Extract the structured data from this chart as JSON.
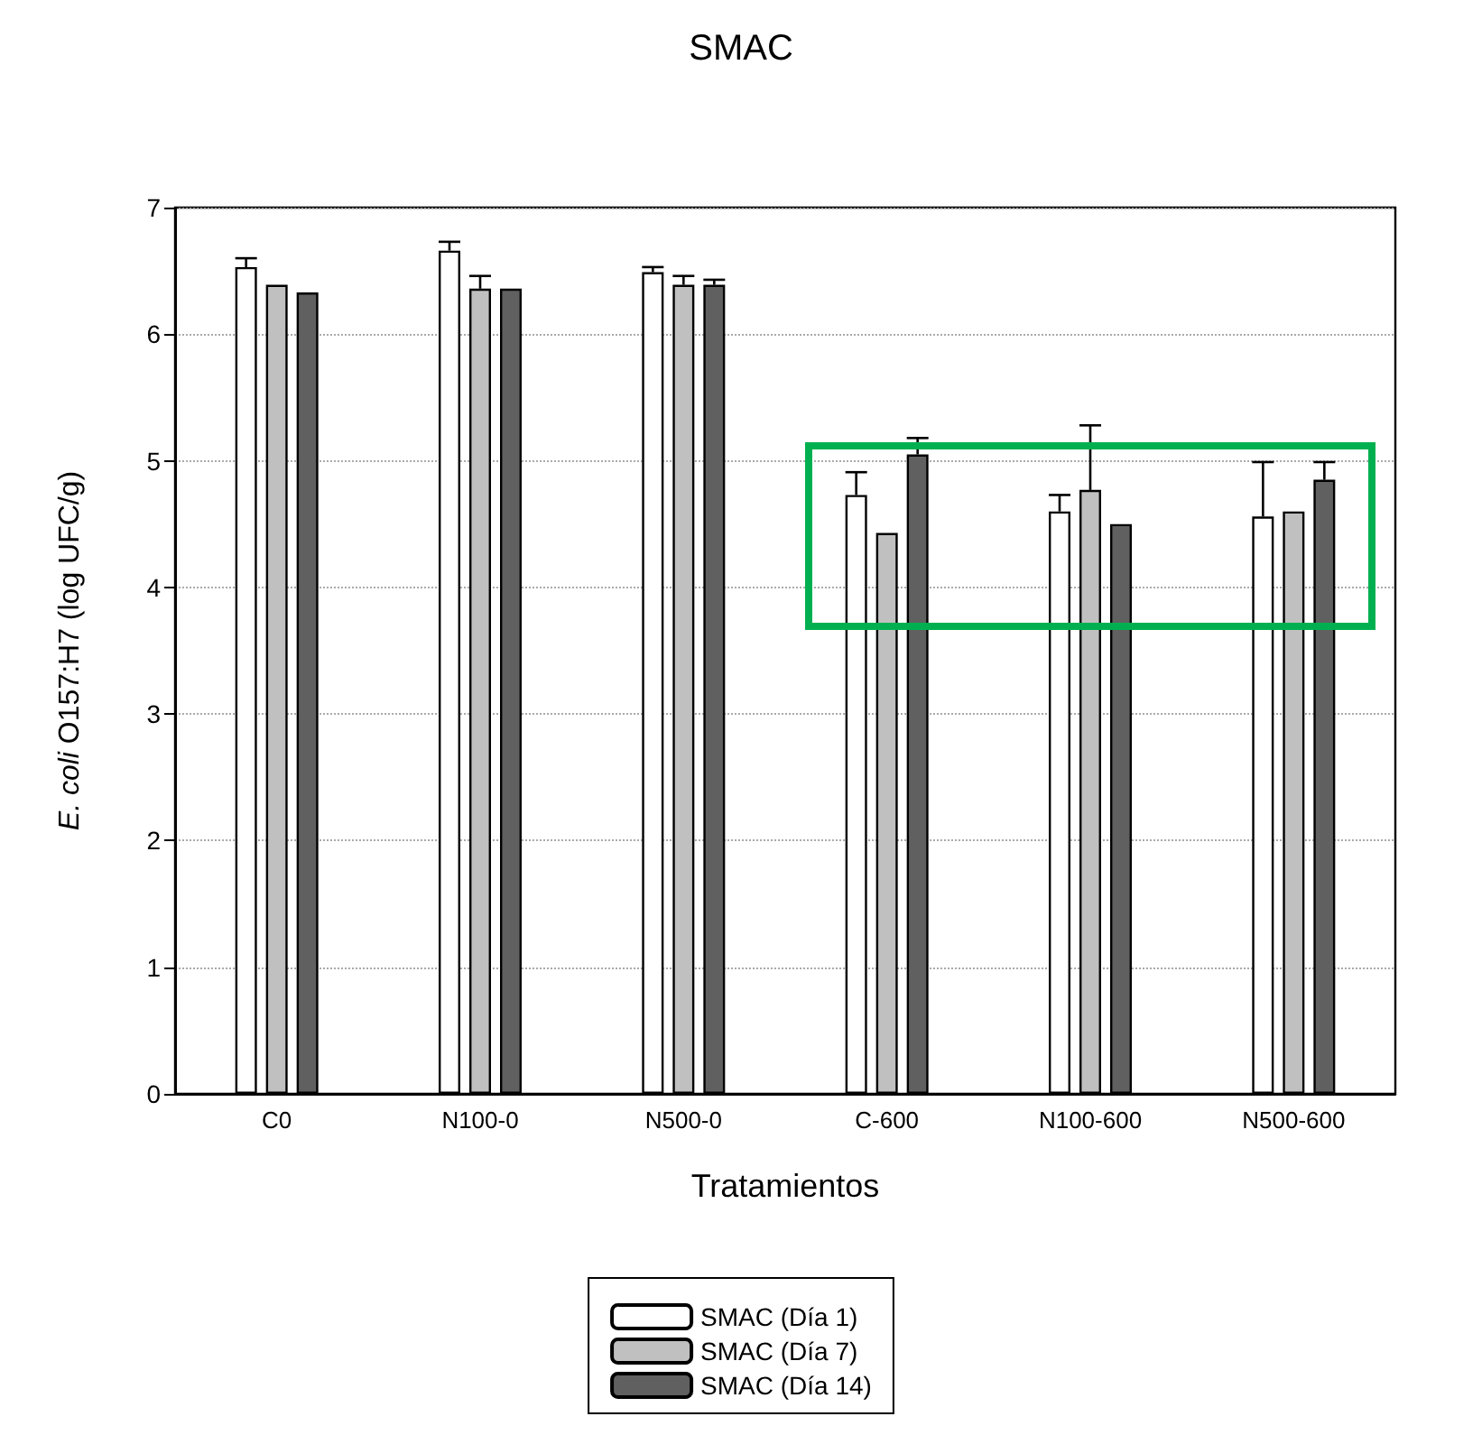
{
  "chart_data": {
    "type": "bar",
    "title": "SMAC",
    "xlabel": "Tratamientos",
    "ylabel": "E. coli O157:H7 (log UFC/g)",
    "categories": [
      "C0",
      "N100-0",
      "N500-0",
      "C-600",
      "N100-600",
      "N500-600"
    ],
    "series": [
      {
        "name": "SMAC (Día 1)",
        "color": "#ffffff",
        "values": [
          6.53,
          6.66,
          6.49,
          4.73,
          4.6,
          4.56
        ],
        "errors": [
          [
            6.53,
            6.6
          ],
          [
            6.66,
            6.73
          ],
          [
            6.49,
            6.53
          ],
          [
            4.73,
            4.91
          ],
          [
            4.6,
            4.73
          ],
          [
            4.56,
            4.99
          ]
        ]
      },
      {
        "name": "SMAC (Día 7)",
        "color": "#c0c0c0",
        "values": [
          6.39,
          6.36,
          6.39,
          4.43,
          4.77,
          4.6
        ],
        "errors": [
          null,
          [
            6.36,
            6.46
          ],
          [
            6.39,
            6.46
          ],
          null,
          [
            4.77,
            5.28
          ],
          null
        ]
      },
      {
        "name": "SMAC (Día 14)",
        "color": "#606060",
        "values": [
          6.33,
          6.36,
          6.39,
          5.05,
          4.5,
          4.85
        ],
        "errors": [
          null,
          null,
          [
            6.39,
            6.43
          ],
          [
            5.05,
            5.18
          ],
          null,
          [
            4.85,
            4.99
          ]
        ]
      }
    ],
    "ylim": [
      0,
      7
    ],
    "yticks": [
      0,
      1,
      2,
      3,
      4,
      5,
      6,
      7
    ],
    "grid": "y",
    "legend": "bottom"
  }
}
